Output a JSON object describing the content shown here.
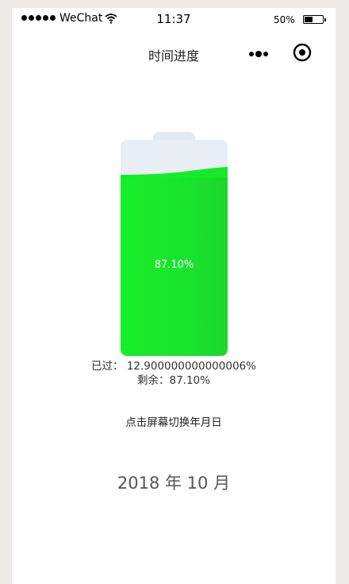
{
  "status_bar": {
    "carrier": "WeChat",
    "time": "11:37",
    "battery_percent": "50%",
    "battery_level": 0.5
  },
  "nav": {
    "title": "时间进度"
  },
  "progress": {
    "level_fraction": 0.871,
    "label": "87.10%",
    "fill_color": "#18e42b"
  },
  "stats": {
    "elapsed": "已过： 12.900000000000006%",
    "remaining": "剩余：87.10%"
  },
  "hint": "点击屏幕切换年月日",
  "period": "2018 年 10 月"
}
